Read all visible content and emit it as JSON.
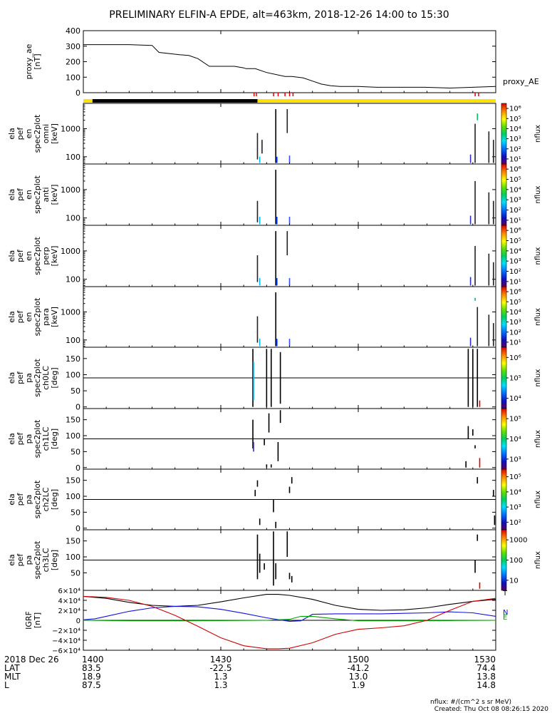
{
  "title": "PRELIMINARY ELFIN-A EPDE, alt=463km, 2018-12-26 14:00 to 15:30",
  "footer": {
    "units": "nflux: #/(cm^2 s sr MeV)",
    "created": "Created: Thu Oct 08 08:26:15 2020"
  },
  "chart_data": [
    {
      "type": "line",
      "name": "proxy_ae",
      "ylabel": [
        "proxy_ae",
        "[nT]"
      ],
      "legend": "proxy_AE",
      "ylim": [
        0,
        400
      ],
      "yticks": [
        "0",
        "100",
        "200",
        "300",
        "400"
      ],
      "x_minutes": [
        0,
        20,
        30,
        33,
        42,
        46,
        50,
        55,
        66,
        70,
        71,
        75,
        80,
        88,
        91,
        96,
        100,
        104,
        108,
        112,
        120,
        128,
        135,
        149,
        160,
        170,
        180
      ],
      "values": [
        310,
        310,
        305,
        260,
        245,
        240,
        220,
        170,
        170,
        160,
        155,
        155,
        130,
        105,
        105,
        95,
        75,
        55,
        45,
        40,
        40,
        35,
        35,
        35,
        30,
        35,
        40
      ],
      "color": "#000000"
    },
    {
      "type": "bar",
      "name": "state-bar",
      "segments": [
        {
          "from": 0,
          "to": 4,
          "color": "#FFE000"
        },
        {
          "from": 4,
          "to": 76,
          "color": "#000000"
        },
        {
          "from": 76,
          "to": 180,
          "color": "#FFE000"
        }
      ],
      "markers": [
        74.5,
        75.5,
        83,
        85,
        88,
        90,
        91.5,
        171,
        172.5
      ],
      "marker_color": "#E00000"
    },
    {
      "type": "heatmap",
      "name": "omni",
      "ylabel": [
        "ela",
        "pef",
        "en",
        "spec2plot",
        "omni",
        "[keV]"
      ],
      "yscale": "log",
      "ylim": [
        55,
        8000
      ],
      "yticks": [
        "100",
        "1000"
      ],
      "colorbar": {
        "label": "nflux",
        "scale": "log",
        "ticks": [
          "10¹",
          "10²",
          "10³",
          "10⁴",
          "10⁵",
          "10⁶"
        ]
      },
      "streaks": [
        {
          "x": 76,
          "ylo": 80,
          "yhi": 700,
          "c": "#222222"
        },
        {
          "x": 77,
          "ylo": 60,
          "yhi": 100,
          "c": "#00B8FF"
        },
        {
          "x": 78,
          "ylo": 130,
          "yhi": 400,
          "c": "#222222"
        },
        {
          "x": 84,
          "ylo": 60,
          "yhi": 5000,
          "c": "#000000"
        },
        {
          "x": 84.5,
          "ylo": 60,
          "yhi": 100,
          "c": "#0040FF"
        },
        {
          "x": 89,
          "ylo": 700,
          "yhi": 5000,
          "c": "#222222"
        },
        {
          "x": 90,
          "ylo": 60,
          "yhi": 110,
          "c": "#3050FF"
        },
        {
          "x": 169,
          "ylo": 60,
          "yhi": 120,
          "c": "#3030C0"
        },
        {
          "x": 171,
          "ylo": 60,
          "yhi": 1500,
          "c": "#222222"
        },
        {
          "x": 172,
          "ylo": 2000,
          "yhi": 3500,
          "c": "#00C060"
        },
        {
          "x": 177,
          "ylo": 60,
          "yhi": 800,
          "c": "#222222"
        },
        {
          "x": 179,
          "ylo": 60,
          "yhi": 400,
          "c": "#222222"
        }
      ]
    },
    {
      "type": "heatmap",
      "name": "anti",
      "ylabel": [
        "ela",
        "pef",
        "en",
        "spec2plot",
        "anti",
        "[keV]"
      ],
      "yscale": "log",
      "ylim": [
        55,
        8000
      ],
      "yticks": [
        "100",
        "1000"
      ],
      "colorbar": {
        "label": "nflux",
        "scale": "log",
        "ticks": [
          "10¹",
          "10²",
          "10³",
          "10⁴",
          "10⁵",
          "10⁶"
        ]
      },
      "streaks": [
        {
          "x": 76,
          "ylo": 70,
          "yhi": 400,
          "c": "#222222"
        },
        {
          "x": 77,
          "ylo": 60,
          "yhi": 110,
          "c": "#00B8FF"
        },
        {
          "x": 84,
          "ylo": 60,
          "yhi": 5000,
          "c": "#000000"
        },
        {
          "x": 84.5,
          "ylo": 60,
          "yhi": 110,
          "c": "#0040FF"
        },
        {
          "x": 90,
          "ylo": 60,
          "yhi": 110,
          "c": "#3050FF"
        },
        {
          "x": 169,
          "ylo": 60,
          "yhi": 120,
          "c": "#3030C0"
        },
        {
          "x": 171,
          "ylo": 60,
          "yhi": 2000,
          "c": "#222222"
        },
        {
          "x": 177,
          "ylo": 60,
          "yhi": 800,
          "c": "#222222"
        },
        {
          "x": 179,
          "ylo": 60,
          "yhi": 400,
          "c": "#222222"
        }
      ]
    },
    {
      "type": "heatmap",
      "name": "perp",
      "ylabel": [
        "ela",
        "pef",
        "en",
        "spec2plot",
        "perp",
        "[keV]"
      ],
      "yscale": "log",
      "ylim": [
        55,
        8000
      ],
      "yticks": [
        "100",
        "1000"
      ],
      "colorbar": {
        "label": "nflux",
        "scale": "log",
        "ticks": [
          "10¹",
          "10²",
          "10³",
          "10⁴",
          "10⁵",
          "10⁶"
        ]
      },
      "streaks": [
        {
          "x": 76,
          "ylo": 80,
          "yhi": 700,
          "c": "#222222"
        },
        {
          "x": 77,
          "ylo": 60,
          "yhi": 110,
          "c": "#00B8FF"
        },
        {
          "x": 84,
          "ylo": 60,
          "yhi": 5000,
          "c": "#000000"
        },
        {
          "x": 84.5,
          "ylo": 60,
          "yhi": 110,
          "c": "#0040FF"
        },
        {
          "x": 89,
          "ylo": 700,
          "yhi": 5000,
          "c": "#222222"
        },
        {
          "x": 90,
          "ylo": 60,
          "yhi": 110,
          "c": "#3050FF"
        },
        {
          "x": 169,
          "ylo": 60,
          "yhi": 120,
          "c": "#3030C0"
        },
        {
          "x": 171,
          "ylo": 60,
          "yhi": 1500,
          "c": "#222222"
        },
        {
          "x": 177,
          "ylo": 60,
          "yhi": 800,
          "c": "#222222"
        },
        {
          "x": 179,
          "ylo": 60,
          "yhi": 400,
          "c": "#222222"
        }
      ]
    },
    {
      "type": "heatmap",
      "name": "para",
      "ylabel": [
        "ela",
        "pef",
        "en",
        "spec2plot",
        "para",
        "[keV]"
      ],
      "yscale": "log",
      "ylim": [
        55,
        8000
      ],
      "yticks": [
        "100",
        "1000"
      ],
      "colorbar": {
        "label": "nflux",
        "scale": "log",
        "ticks": [
          "10¹",
          "10²",
          "10³",
          "10⁴",
          "10⁵",
          "10⁶"
        ]
      },
      "streaks": [
        {
          "x": 76,
          "ylo": 80,
          "yhi": 700,
          "c": "#222222"
        },
        {
          "x": 77,
          "ylo": 60,
          "yhi": 110,
          "c": "#00B8FF"
        },
        {
          "x": 84,
          "ylo": 60,
          "yhi": 5000,
          "c": "#000000"
        },
        {
          "x": 84.5,
          "ylo": 60,
          "yhi": 110,
          "c": "#0040FF"
        },
        {
          "x": 90,
          "ylo": 60,
          "yhi": 110,
          "c": "#3050FF"
        },
        {
          "x": 169,
          "ylo": 60,
          "yhi": 120,
          "c": "#3030C0"
        },
        {
          "x": 171,
          "ylo": 2500,
          "yhi": 3200,
          "c": "#00C060"
        },
        {
          "x": 172,
          "ylo": 60,
          "yhi": 1500,
          "c": "#222222"
        },
        {
          "x": 177,
          "ylo": 60,
          "yhi": 800,
          "c": "#222222"
        },
        {
          "x": 179,
          "ylo": 60,
          "yhi": 400,
          "c": "#222222"
        }
      ]
    },
    {
      "type": "heatmap",
      "name": "ch0LC",
      "ylabel": [
        "ela",
        "pef",
        "pa",
        "spec2plot",
        "ch0LC",
        "[deg]"
      ],
      "yscale": "linear",
      "ylim": [
        -5,
        185
      ],
      "yticks": [
        "0",
        "50",
        "100",
        "150"
      ],
      "hline": 90,
      "colorbar": {
        "label": "nflux",
        "scale": "log",
        "ticks": [
          "10⁴",
          "10⁵",
          "10⁶"
        ]
      },
      "streaks": [
        {
          "x": 74,
          "ylo": 0,
          "yhi": 180,
          "c": "#000000"
        },
        {
          "x": 74.3,
          "ylo": 20,
          "yhi": 140,
          "c": "#00B8FF"
        },
        {
          "x": 80,
          "ylo": 0,
          "yhi": 180,
          "c": "#000000"
        },
        {
          "x": 82,
          "ylo": 0,
          "yhi": 180,
          "c": "#000000"
        },
        {
          "x": 86,
          "ylo": 10,
          "yhi": 170,
          "c": "#000000"
        },
        {
          "x": 168,
          "ylo": 0,
          "yhi": 180,
          "c": "#000000"
        },
        {
          "x": 170,
          "ylo": 0,
          "yhi": 180,
          "c": "#000000"
        },
        {
          "x": 172,
          "ylo": 0,
          "yhi": 180,
          "c": "#000000"
        },
        {
          "x": 173,
          "ylo": 0,
          "yhi": 20,
          "c": "#E00000"
        }
      ]
    },
    {
      "type": "heatmap",
      "name": "ch1LC",
      "ylabel": [
        "ela",
        "pef",
        "pa",
        "spec2plot",
        "ch1LC",
        "[deg]"
      ],
      "yscale": "linear",
      "ylim": [
        -5,
        185
      ],
      "yticks": [
        "0",
        "50",
        "100",
        "150"
      ],
      "hline": 90,
      "colorbar": {
        "label": "nflux",
        "scale": "log",
        "ticks": [
          "10³",
          "10⁴",
          "10⁵"
        ]
      },
      "streaks": [
        {
          "x": 74,
          "ylo": 60,
          "yhi": 150,
          "c": "#000000"
        },
        {
          "x": 74.3,
          "ylo": 50,
          "yhi": 80,
          "c": "#3030C0"
        },
        {
          "x": 79,
          "ylo": 70,
          "yhi": 90,
          "c": "#000000"
        },
        {
          "x": 80,
          "ylo": 0,
          "yhi": 10,
          "c": "#000000"
        },
        {
          "x": 81,
          "ylo": 110,
          "yhi": 170,
          "c": "#000000"
        },
        {
          "x": 82,
          "ylo": 0,
          "yhi": 10,
          "c": "#000000"
        },
        {
          "x": 85,
          "ylo": 20,
          "yhi": 80,
          "c": "#000000"
        },
        {
          "x": 86,
          "ylo": 140,
          "yhi": 180,
          "c": "#000000"
        },
        {
          "x": 167,
          "ylo": 0,
          "yhi": 20,
          "c": "#000000"
        },
        {
          "x": 168,
          "ylo": 90,
          "yhi": 130,
          "c": "#000000"
        },
        {
          "x": 170,
          "ylo": 100,
          "yhi": 120,
          "c": "#000000"
        },
        {
          "x": 171,
          "ylo": 60,
          "yhi": 70,
          "c": "#000000"
        },
        {
          "x": 173,
          "ylo": 0,
          "yhi": 30,
          "c": "#E00000"
        }
      ]
    },
    {
      "type": "heatmap",
      "name": "ch2LC",
      "ylabel": [
        "ela",
        "pef",
        "pa",
        "spec2plot",
        "ch2LC",
        "[deg]"
      ],
      "yscale": "linear",
      "ylim": [
        -5,
        185
      ],
      "yticks": [
        "0",
        "50",
        "100",
        "150"
      ],
      "hline": 90,
      "colorbar": {
        "label": "nflux",
        "scale": "log",
        "ticks": [
          "10²",
          "10³",
          "10⁴",
          "10⁵"
        ]
      },
      "streaks": [
        {
          "x": 75,
          "ylo": 100,
          "yhi": 120,
          "c": "#000000"
        },
        {
          "x": 76,
          "ylo": 130,
          "yhi": 150,
          "c": "#000000"
        },
        {
          "x": 77,
          "ylo": 10,
          "yhi": 30,
          "c": "#000000"
        },
        {
          "x": 83,
          "ylo": 50,
          "yhi": 90,
          "c": "#000000"
        },
        {
          "x": 84,
          "ylo": 0,
          "yhi": 20,
          "c": "#000000"
        },
        {
          "x": 90,
          "ylo": 110,
          "yhi": 130,
          "c": "#000000"
        },
        {
          "x": 91,
          "ylo": 140,
          "yhi": 160,
          "c": "#000000"
        },
        {
          "x": 172,
          "ylo": 140,
          "yhi": 160,
          "c": "#000000"
        },
        {
          "x": 179,
          "ylo": 100,
          "yhi": 120,
          "c": "#000000"
        },
        {
          "x": 179.5,
          "ylo": 10,
          "yhi": 40,
          "c": "#000000"
        }
      ]
    },
    {
      "type": "heatmap",
      "name": "ch3LC",
      "ylabel": [
        "ela",
        "pef",
        "pa",
        "spec2plot",
        "ch3LC",
        "[deg]"
      ],
      "yscale": "linear",
      "ylim": [
        -5,
        185
      ],
      "yticks": [
        "50",
        "100",
        "150"
      ],
      "hline": 90,
      "colorbar": {
        "label": "nflux",
        "scale": "log",
        "ticks": [
          "10",
          "100",
          "1000"
        ]
      },
      "streaks": [
        {
          "x": 76,
          "ylo": 30,
          "yhi": 170,
          "c": "#000000"
        },
        {
          "x": 77,
          "ylo": 50,
          "yhi": 110,
          "c": "#000000"
        },
        {
          "x": 79,
          "ylo": 60,
          "yhi": 80,
          "c": "#000000"
        },
        {
          "x": 83,
          "ylo": 10,
          "yhi": 180,
          "c": "#000000"
        },
        {
          "x": 84,
          "ylo": 30,
          "yhi": 80,
          "c": "#000000"
        },
        {
          "x": 89,
          "ylo": 100,
          "yhi": 180,
          "c": "#000000"
        },
        {
          "x": 90,
          "ylo": 30,
          "yhi": 50,
          "c": "#000000"
        },
        {
          "x": 91,
          "ylo": 20,
          "yhi": 40,
          "c": "#000000"
        },
        {
          "x": 171,
          "ylo": 50,
          "yhi": 90,
          "c": "#000000"
        },
        {
          "x": 172,
          "ylo": 150,
          "yhi": 170,
          "c": "#000000"
        },
        {
          "x": 173,
          "ylo": 0,
          "yhi": 20,
          "c": "#E00000"
        }
      ]
    },
    {
      "type": "line",
      "name": "IGRF",
      "ylabel": [
        "IGRF",
        "[nT]"
      ],
      "ylim": [
        -60000,
        60000
      ],
      "yticks": [
        "−6×10⁴",
        "−4×10⁴",
        "−2×10⁴",
        "0",
        "2×10⁴",
        "4×10⁴",
        "6×10⁴"
      ],
      "ytick_values": [
        -60000,
        -40000,
        -20000,
        0,
        20000,
        40000,
        60000
      ],
      "legend": [
        "T",
        "N",
        "E"
      ],
      "series": [
        {
          "name": "T",
          "color": "#000000",
          "x": [
            0,
            10,
            20,
            30,
            40,
            50,
            60,
            70,
            80,
            85,
            90,
            100,
            110,
            120,
            130,
            140,
            150,
            160,
            170,
            180
          ],
          "y": [
            48000,
            44000,
            36000,
            30000,
            28000,
            30000,
            37000,
            45000,
            52000,
            52000,
            50000,
            42000,
            30000,
            22000,
            20000,
            21000,
            25000,
            32000,
            38000,
            42000
          ]
        },
        {
          "name": "N",
          "color": "#1010E0",
          "x": [
            0,
            5,
            10,
            20,
            30,
            40,
            50,
            60,
            70,
            80,
            90,
            95,
            100,
            110,
            120,
            130,
            140,
            150,
            160,
            170,
            180
          ],
          "y": [
            1000,
            3000,
            8000,
            18000,
            25000,
            28000,
            27000,
            22000,
            14000,
            5000,
            -2000,
            -1000,
            12000,
            13000,
            13000,
            13000,
            14000,
            15000,
            17000,
            15000,
            8000
          ]
        },
        {
          "name": "E",
          "color": "#00A000",
          "x": [
            0,
            20,
            40,
            60,
            80,
            90,
            95,
            100,
            110,
            120,
            130,
            140,
            160,
            180
          ],
          "y": [
            0,
            -1000,
            -1000,
            -500,
            0,
            2000,
            8000,
            8000,
            3000,
            -1000,
            -1000,
            -1000,
            -500,
            0
          ]
        },
        {
          "name": "Z",
          "color": "#D00000",
          "x": [
            0,
            10,
            20,
            30,
            40,
            50,
            60,
            70,
            80,
            85,
            90,
            100,
            110,
            120,
            130,
            140,
            150,
            160,
            170,
            180
          ],
          "y": [
            48000,
            46000,
            40000,
            28000,
            10000,
            -12000,
            -35000,
            -51000,
            -57000,
            -57000,
            -56000,
            -45000,
            -28000,
            -18000,
            -15000,
            -11000,
            0,
            20000,
            38000,
            44000
          ]
        }
      ]
    }
  ],
  "xaxis": {
    "ticks": [
      "1400",
      "1430",
      "1500",
      "1530"
    ],
    "tick_minutes": [
      0,
      60,
      120,
      180
    ],
    "ephem_rows": [
      {
        "label": "2018 Dec 26",
        "values": [
          "1400",
          "1430",
          "1500",
          "1530"
        ]
      },
      {
        "label": "LAT",
        "values": [
          "83.5",
          "-22.5",
          "-41.2",
          "74.4"
        ]
      },
      {
        "label": "MLT",
        "values": [
          "18.9",
          "1.3",
          "13.0",
          "13.8"
        ]
      },
      {
        "label": "L",
        "values": [
          "87.5",
          "1.3",
          "1.9",
          "14.8"
        ]
      }
    ]
  }
}
